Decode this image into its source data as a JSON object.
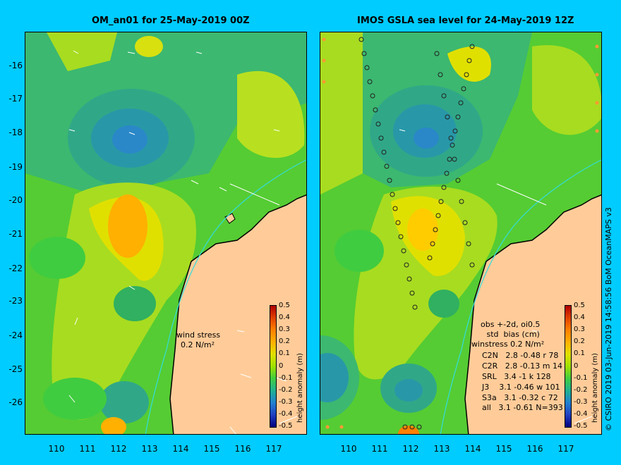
{
  "left_panel": {
    "title": "OM_an01 for 25-May-2019 00Z",
    "wind_label": "wind stress",
    "wind_value": "0.2 N/m²"
  },
  "right_panel": {
    "title": "IMOS GSLA sea level  for 24-May-2019 12Z",
    "stats_header": "obs +-2d, oi0.5",
    "stats_colheader": "       std  bias (cm)",
    "stats_rows": [
      "C2N   2.8 -0.48 r 78",
      "C2R   2.8 -0.13 m 14",
      "SRL   3.4 -1 k 128",
      "J3    3.1 -0.46 w 101",
      "S3a   3.1 -0.32 c 72",
      "all   3.1 -0.61 N=393"
    ],
    "overlay_label": "winstress 0.2 N/m²"
  },
  "y_ticks": [
    "-16",
    "-17",
    "-18",
    "-19",
    "-20",
    "-21",
    "-22",
    "-23",
    "-24",
    "-25",
    "-26"
  ],
  "x_ticks": [
    "110",
    "111",
    "112",
    "113",
    "114",
    "115",
    "116",
    "117"
  ],
  "colorbar": {
    "label": "height anomaly (m)",
    "ticks": [
      "0.5",
      "0.4",
      "0.3",
      "0.2",
      "0.1",
      "0",
      "-0.1",
      "-0.2",
      "-0.3",
      "-0.4",
      "-0.5"
    ],
    "colors": [
      "#b00000",
      "#e04000",
      "#ff8000",
      "#ffb000",
      "#e0e000",
      "#a0e000",
      "#40cc40",
      "#20b090",
      "#2080d0",
      "#2040c0",
      "#000080"
    ]
  },
  "credit": "© CSIRO 2019   03-Jun-2019 14:58:56 BoM OceanMAPS v3",
  "colors": {
    "background": "#00ccff",
    "land": "#ffcc99",
    "coastline": "#000000"
  }
}
